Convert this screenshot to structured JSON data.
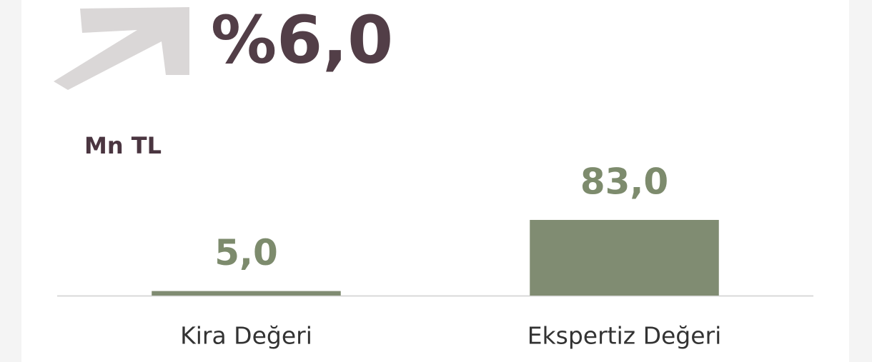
{
  "chart_data": {
    "type": "bar",
    "change_label": "%6,0",
    "unit": "Mn TL",
    "categories": [
      "Kira Değeri",
      "Ekspertiz Değeri"
    ],
    "values": [
      5.0,
      83.0
    ],
    "value_labels": [
      "5,0",
      "83,0"
    ],
    "color": "#808c72"
  }
}
